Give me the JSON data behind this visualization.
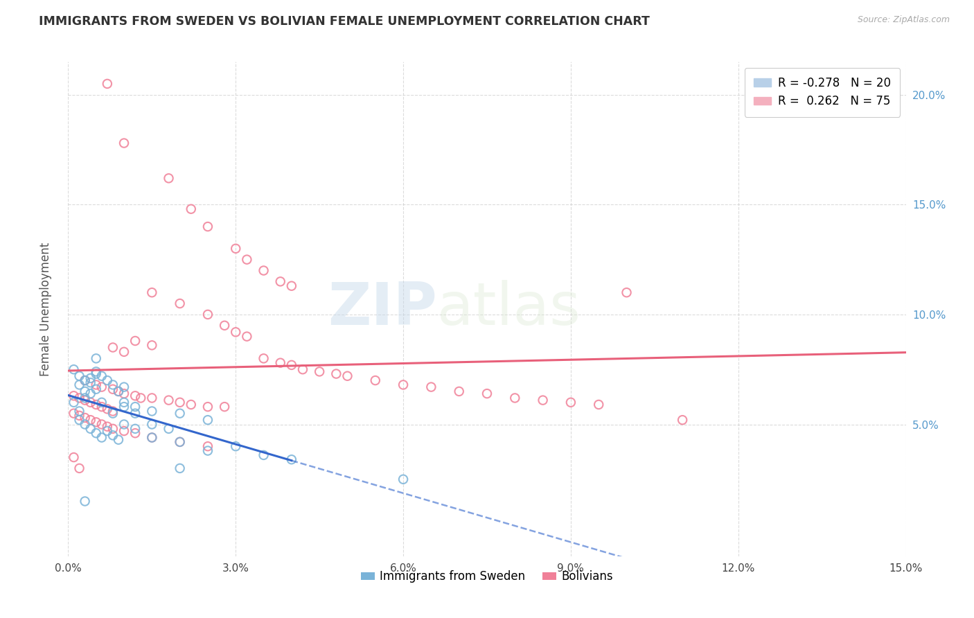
{
  "title": "IMMIGRANTS FROM SWEDEN VS BOLIVIAN FEMALE UNEMPLOYMENT CORRELATION CHART",
  "source": "Source: ZipAtlas.com",
  "ylabel": "Female Unemployment",
  "x_min": 0.0,
  "x_max": 0.15,
  "y_min": -0.01,
  "y_max": 0.215,
  "yticks": [
    0.05,
    0.1,
    0.15,
    0.2
  ],
  "ytick_labels": [
    "5.0%",
    "10.0%",
    "15.0%",
    "20.0%"
  ],
  "xticks": [
    0.0,
    0.03,
    0.06,
    0.09,
    0.12,
    0.15
  ],
  "xtick_labels": [
    "0.0%",
    "3.0%",
    "6.0%",
    "9.0%",
    "12.0%",
    "15.0%"
  ],
  "sweden_color": "#7ab3d8",
  "bolivia_color": "#f08098",
  "sweden_line_color": "#3366cc",
  "bolivia_line_color": "#e8607a",
  "watermark_zip": "ZIP",
  "watermark_atlas": "atlas",
  "sweden_points": [
    [
      0.001,
      0.075
    ],
    [
      0.002,
      0.068
    ],
    [
      0.002,
      0.072
    ],
    [
      0.003,
      0.07
    ],
    [
      0.003,
      0.065
    ],
    [
      0.004,
      0.071
    ],
    [
      0.004,
      0.069
    ],
    [
      0.005,
      0.08
    ],
    [
      0.005,
      0.074
    ],
    [
      0.005,
      0.073
    ],
    [
      0.006,
      0.072
    ],
    [
      0.007,
      0.07
    ],
    [
      0.008,
      0.068
    ],
    [
      0.009,
      0.065
    ],
    [
      0.01,
      0.067
    ],
    [
      0.01,
      0.06
    ],
    [
      0.012,
      0.058
    ],
    [
      0.015,
      0.056
    ],
    [
      0.02,
      0.055
    ],
    [
      0.025,
      0.052
    ],
    [
      0.002,
      0.052
    ],
    [
      0.003,
      0.05
    ],
    [
      0.004,
      0.048
    ],
    [
      0.005,
      0.046
    ],
    [
      0.006,
      0.044
    ],
    [
      0.007,
      0.047
    ],
    [
      0.008,
      0.045
    ],
    [
      0.009,
      0.043
    ],
    [
      0.01,
      0.058
    ],
    [
      0.012,
      0.055
    ],
    [
      0.015,
      0.05
    ],
    [
      0.018,
      0.048
    ],
    [
      0.02,
      0.042
    ],
    [
      0.025,
      0.038
    ],
    [
      0.03,
      0.04
    ],
    [
      0.035,
      0.036
    ],
    [
      0.04,
      0.034
    ],
    [
      0.001,
      0.06
    ],
    [
      0.002,
      0.056
    ],
    [
      0.003,
      0.062
    ],
    [
      0.004,
      0.064
    ],
    [
      0.005,
      0.066
    ],
    [
      0.006,
      0.06
    ],
    [
      0.008,
      0.055
    ],
    [
      0.01,
      0.05
    ],
    [
      0.012,
      0.048
    ],
    [
      0.015,
      0.044
    ],
    [
      0.003,
      0.015
    ],
    [
      0.02,
      0.03
    ],
    [
      0.06,
      0.025
    ]
  ],
  "bolivia_points": [
    [
      0.007,
      0.205
    ],
    [
      0.01,
      0.178
    ],
    [
      0.018,
      0.162
    ],
    [
      0.022,
      0.148
    ],
    [
      0.025,
      0.14
    ],
    [
      0.03,
      0.13
    ],
    [
      0.032,
      0.125
    ],
    [
      0.035,
      0.12
    ],
    [
      0.038,
      0.115
    ],
    [
      0.04,
      0.113
    ],
    [
      0.015,
      0.11
    ],
    [
      0.02,
      0.105
    ],
    [
      0.025,
      0.1
    ],
    [
      0.028,
      0.095
    ],
    [
      0.03,
      0.092
    ],
    [
      0.032,
      0.09
    ],
    [
      0.012,
      0.088
    ],
    [
      0.015,
      0.086
    ],
    [
      0.008,
      0.085
    ],
    [
      0.01,
      0.083
    ],
    [
      0.035,
      0.08
    ],
    [
      0.038,
      0.078
    ],
    [
      0.04,
      0.077
    ],
    [
      0.042,
      0.075
    ],
    [
      0.045,
      0.074
    ],
    [
      0.048,
      0.073
    ],
    [
      0.05,
      0.072
    ],
    [
      0.055,
      0.07
    ],
    [
      0.06,
      0.068
    ],
    [
      0.065,
      0.067
    ],
    [
      0.07,
      0.065
    ],
    [
      0.075,
      0.064
    ],
    [
      0.08,
      0.062
    ],
    [
      0.085,
      0.061
    ],
    [
      0.09,
      0.06
    ],
    [
      0.095,
      0.059
    ],
    [
      0.1,
      0.11
    ],
    [
      0.003,
      0.07
    ],
    [
      0.005,
      0.068
    ],
    [
      0.006,
      0.067
    ],
    [
      0.008,
      0.066
    ],
    [
      0.009,
      0.065
    ],
    [
      0.01,
      0.064
    ],
    [
      0.012,
      0.063
    ],
    [
      0.013,
      0.062
    ],
    [
      0.015,
      0.062
    ],
    [
      0.018,
      0.061
    ],
    [
      0.02,
      0.06
    ],
    [
      0.022,
      0.059
    ],
    [
      0.025,
      0.058
    ],
    [
      0.028,
      0.058
    ],
    [
      0.001,
      0.063
    ],
    [
      0.002,
      0.062
    ],
    [
      0.003,
      0.061
    ],
    [
      0.004,
      0.06
    ],
    [
      0.005,
      0.059
    ],
    [
      0.006,
      0.058
    ],
    [
      0.007,
      0.057
    ],
    [
      0.008,
      0.056
    ],
    [
      0.001,
      0.055
    ],
    [
      0.002,
      0.054
    ],
    [
      0.003,
      0.053
    ],
    [
      0.004,
      0.052
    ],
    [
      0.005,
      0.051
    ],
    [
      0.006,
      0.05
    ],
    [
      0.007,
      0.049
    ],
    [
      0.008,
      0.048
    ],
    [
      0.01,
      0.047
    ],
    [
      0.012,
      0.046
    ],
    [
      0.015,
      0.044
    ],
    [
      0.02,
      0.042
    ],
    [
      0.025,
      0.04
    ],
    [
      0.001,
      0.035
    ],
    [
      0.002,
      0.03
    ],
    [
      0.11,
      0.052
    ]
  ]
}
